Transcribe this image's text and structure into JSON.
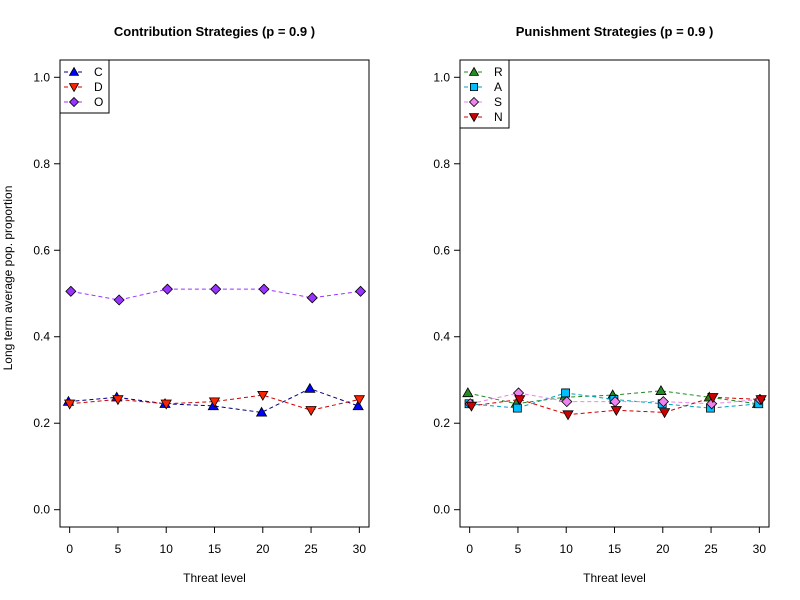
{
  "y_axis_label": "Long term average pop. proportion",
  "chart_data": [
    {
      "type": "line",
      "title": "Contribution Strategies (p = 0.9 )",
      "xlabel": "Threat level",
      "ylabel": "Long term average pop. proportion",
      "x": [
        0,
        5,
        10,
        15,
        20,
        25,
        30
      ],
      "xticks": [
        "0",
        "5",
        "10",
        "15",
        "20",
        "25",
        "30"
      ],
      "yticks": [
        "0.0",
        "0.2",
        "0.4",
        "0.6",
        "0.8",
        "1.0"
      ],
      "xlim": [
        -1,
        31
      ],
      "ylim": [
        -0.04,
        1.04
      ],
      "grid": false,
      "legend_position": "top-left",
      "series": [
        {
          "name": "C",
          "values": [
            0.25,
            0.26,
            0.245,
            0.24,
            0.225,
            0.28,
            0.24
          ],
          "color": "#0000ff",
          "marker": "triangle-up",
          "line_color": "#000080"
        },
        {
          "name": "D",
          "values": [
            0.245,
            0.255,
            0.245,
            0.25,
            0.265,
            0.23,
            0.255
          ],
          "color": "#ff2200",
          "marker": "triangle-down",
          "line_color": "#cc0000"
        },
        {
          "name": "O",
          "values": [
            0.505,
            0.485,
            0.51,
            0.51,
            0.51,
            0.49,
            0.505
          ],
          "color": "#9933ff",
          "marker": "diamond",
          "line_color": "#9933ff"
        }
      ]
    },
    {
      "type": "line",
      "title": "Punishment Strategies (p = 0.9 )",
      "xlabel": "Threat level",
      "ylabel": "",
      "x": [
        0,
        5,
        10,
        15,
        20,
        25,
        30
      ],
      "xticks": [
        "0",
        "5",
        "10",
        "15",
        "20",
        "25",
        "30"
      ],
      "yticks": [
        "0.0",
        "0.2",
        "0.4",
        "0.6",
        "0.8",
        "1.0"
      ],
      "xlim": [
        -1,
        31
      ],
      "ylim": [
        -0.04,
        1.04
      ],
      "grid": false,
      "legend_position": "top-left",
      "series": [
        {
          "name": "R",
          "values": [
            0.27,
            0.245,
            0.26,
            0.265,
            0.275,
            0.26,
            0.245
          ],
          "color": "#228b22",
          "marker": "triangle-up",
          "line_color": "#228b22"
        },
        {
          "name": "A",
          "values": [
            0.245,
            0.235,
            0.27,
            0.255,
            0.245,
            0.235,
            0.245
          ],
          "color": "#00bfff",
          "marker": "square",
          "line_color": "#00a0c0"
        },
        {
          "name": "S",
          "values": [
            0.245,
            0.27,
            0.25,
            0.25,
            0.25,
            0.245,
            0.255
          ],
          "color": "#ee82ee",
          "marker": "diamond",
          "line_color": "#ee82ee"
        },
        {
          "name": "N",
          "values": [
            0.24,
            0.255,
            0.22,
            0.23,
            0.225,
            0.26,
            0.255
          ],
          "color": "#cc0000",
          "marker": "triangle-down",
          "line_color": "#cc0000"
        }
      ]
    }
  ]
}
